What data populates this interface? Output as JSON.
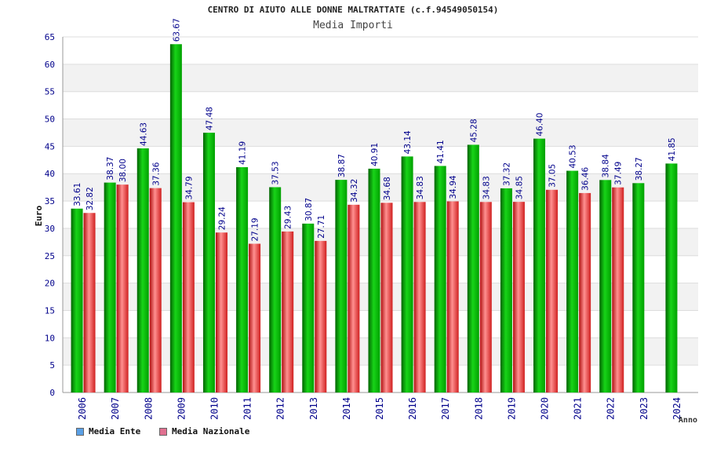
{
  "chart_data": {
    "type": "bar",
    "title": "CENTRO DI AIUTO ALLE DONNE MALTRATTATE (c.f.94549050154)",
    "subtitle": "Media Importi",
    "ylabel": "Euro",
    "xlabel": "Anno",
    "ylim": [
      0,
      65
    ],
    "yticks": [
      0,
      5,
      10,
      15,
      20,
      25,
      30,
      35,
      40,
      45,
      50,
      55,
      60,
      65
    ],
    "categories": [
      "2006",
      "2007",
      "2008",
      "2009",
      "2010",
      "2011",
      "2012",
      "2013",
      "2014",
      "2015",
      "2016",
      "2017",
      "2018",
      "2019",
      "2020",
      "2021",
      "2022",
      "2023",
      "2024"
    ],
    "series": [
      {
        "name": "Media Ente",
        "color": "#00b000",
        "values": [
          33.61,
          38.37,
          44.63,
          63.67,
          47.48,
          41.19,
          37.53,
          30.87,
          38.87,
          40.91,
          43.14,
          41.41,
          45.28,
          37.32,
          46.4,
          40.53,
          38.84,
          38.27,
          41.85
        ],
        "labels": [
          "33.61",
          "38.37",
          "44.63",
          "63.67",
          "47.48",
          "41.19",
          "37.53",
          "30.87",
          "38.87",
          "40.91",
          "43.14",
          "41.41",
          "45.28",
          "37.32",
          "46.40",
          "40.53",
          "38.84",
          "38.27",
          "41.85"
        ]
      },
      {
        "name": "Media Nazionale",
        "color": "#e03030",
        "values": [
          32.82,
          38.0,
          37.36,
          34.79,
          29.24,
          27.19,
          29.43,
          27.71,
          34.32,
          34.68,
          34.83,
          34.94,
          34.83,
          34.85,
          37.05,
          36.46,
          37.49,
          null,
          null
        ],
        "labels": [
          "32.82",
          "38.00",
          "37.36",
          "34.79",
          "29.24",
          "27.19",
          "29.43",
          "27.71",
          "34.32",
          "34.68",
          "34.83",
          "34.94",
          "34.83",
          "34.85",
          "37.05",
          "36.46",
          "37.49",
          "",
          ""
        ]
      }
    ],
    "grid": true,
    "legend_position": "bottom-left"
  },
  "legend": {
    "items": [
      {
        "label": "Media Ente",
        "color": "#5aa0e6"
      },
      {
        "label": "Media Nazionale",
        "color": "#e07090"
      }
    ]
  }
}
